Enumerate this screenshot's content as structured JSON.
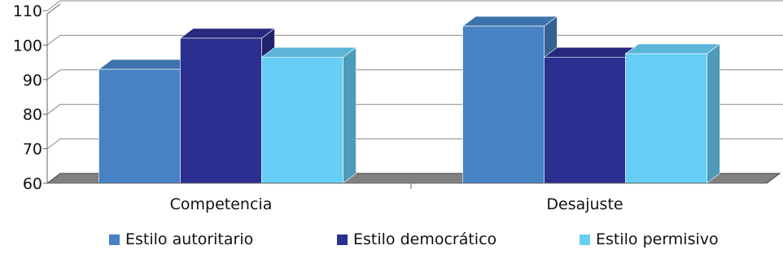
{
  "chart_data": {
    "type": "bar",
    "style": "3d-clustered-column",
    "categories": [
      "Competencia",
      "Desajuste"
    ],
    "series": [
      {
        "name": "Estilo autoritario",
        "values": [
          93,
          105.5
        ],
        "color": "#4682c4"
      },
      {
        "name": "Estilo democrático",
        "values": [
          102,
          96.5
        ],
        "color": "#2b2f8f"
      },
      {
        "name": "Estilo permisivo",
        "values": [
          96.5,
          97.5
        ],
        "color": "#66cef5"
      }
    ],
    "yticks": [
      60,
      70,
      80,
      90,
      100,
      110
    ],
    "ylim": [
      60,
      110
    ],
    "grid": true,
    "legend_position": "bottom",
    "floor_color": "#808080"
  }
}
